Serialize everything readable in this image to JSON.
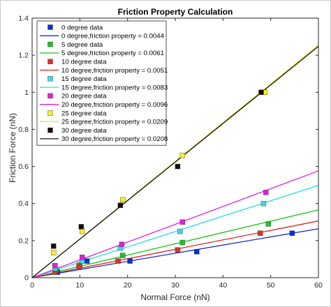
{
  "chart_data": {
    "type": "scatter",
    "title": "Friction Property Calculation",
    "xlabel": "Normal Force (nN)",
    "ylabel": "Friction Force (nN)",
    "xlim": [
      0,
      60
    ],
    "ylim": [
      0,
      1.4
    ],
    "xticks": [
      "0",
      "10",
      "20",
      "30",
      "40",
      "50",
      "60"
    ],
    "yticks": [
      "0",
      "0.2",
      "0.4",
      "0.6",
      "0.8",
      "1",
      "1.2",
      "1.4"
    ],
    "xtick_values": [
      0,
      10,
      20,
      30,
      40,
      50,
      60
    ],
    "ytick_values": [
      0,
      0.2,
      0.4,
      0.6,
      0.8,
      1.0,
      1.2,
      1.4
    ],
    "grid": false,
    "legend_position": "top-left",
    "series": [
      {
        "name": "0 degree data",
        "kind": "scatter",
        "color": "#0033cc",
        "points": [
          [
            5.3,
            0.03
          ],
          [
            11.5,
            0.09
          ],
          [
            20.5,
            0.09
          ],
          [
            34.5,
            0.14
          ],
          [
            54.5,
            0.24
          ]
        ]
      },
      {
        "name": "0 degree,friction property = 0.0044",
        "kind": "line",
        "color": "#1a2bd0",
        "slope": 0.0044
      },
      {
        "name": "5 degree data",
        "kind": "scatter",
        "color": "#22c22b",
        "points": [
          [
            5.0,
            0.04
          ],
          [
            10.0,
            0.07
          ],
          [
            19.0,
            0.12
          ],
          [
            31.5,
            0.19
          ],
          [
            49.5,
            0.29
          ]
        ]
      },
      {
        "name": "5 degree,friction property = 0.0061",
        "kind": "line",
        "color": "#19c419",
        "slope": 0.0061
      },
      {
        "name": "10 degree data",
        "kind": "scatter",
        "color": "#e0301e",
        "points": [
          [
            4.8,
            0.03
          ],
          [
            9.8,
            0.06
          ],
          [
            18.0,
            0.09
          ],
          [
            30.5,
            0.15
          ],
          [
            47.8,
            0.24
          ]
        ]
      },
      {
        "name": "10 degree,friction property = 0.0051",
        "kind": "line",
        "color": "#e02020",
        "slope": 0.0051
      },
      {
        "name": "15 degree data",
        "kind": "scatter",
        "color": "#3fd9e6",
        "points": [
          [
            4.8,
            0.05
          ],
          [
            10.5,
            0.09
          ],
          [
            18.5,
            0.16
          ],
          [
            31.0,
            0.25
          ],
          [
            48.5,
            0.4
          ]
        ]
      },
      {
        "name": "15 degree,friction property = 0.0083",
        "kind": "line",
        "color": "#1fe0e6",
        "slope": 0.0083
      },
      {
        "name": "20 degree data",
        "kind": "scatter",
        "color": "#e020e0",
        "points": [
          [
            4.8,
            0.065
          ],
          [
            10.5,
            0.11
          ],
          [
            18.8,
            0.18
          ],
          [
            31.5,
            0.3
          ],
          [
            49.0,
            0.46
          ]
        ]
      },
      {
        "name": "20 degree,friction property = 0.0096",
        "kind": "line",
        "color": "#e020e0",
        "slope": 0.0096
      },
      {
        "name": "25 degree data",
        "kind": "scatter",
        "color": "#f2f02a",
        "points": [
          [
            4.5,
            0.135
          ],
          [
            10.5,
            0.25
          ],
          [
            19.0,
            0.42
          ],
          [
            31.5,
            0.66
          ],
          [
            48.8,
            1.0
          ]
        ]
      },
      {
        "name": "25 degree,friction property = 0.0209",
        "kind": "line",
        "color": "#e8e81a",
        "slope": 0.0209
      },
      {
        "name": "30 degree data",
        "kind": "scatter",
        "color": "#1a0a0a",
        "points": [
          [
            4.5,
            0.17
          ],
          [
            10.3,
            0.275
          ],
          [
            18.5,
            0.39
          ],
          [
            30.5,
            0.6
          ],
          [
            48.0,
            1.0
          ]
        ]
      },
      {
        "name": "30 degree,friction property = 0.0208",
        "kind": "line",
        "color": "#111111",
        "slope": 0.0208
      }
    ]
  }
}
